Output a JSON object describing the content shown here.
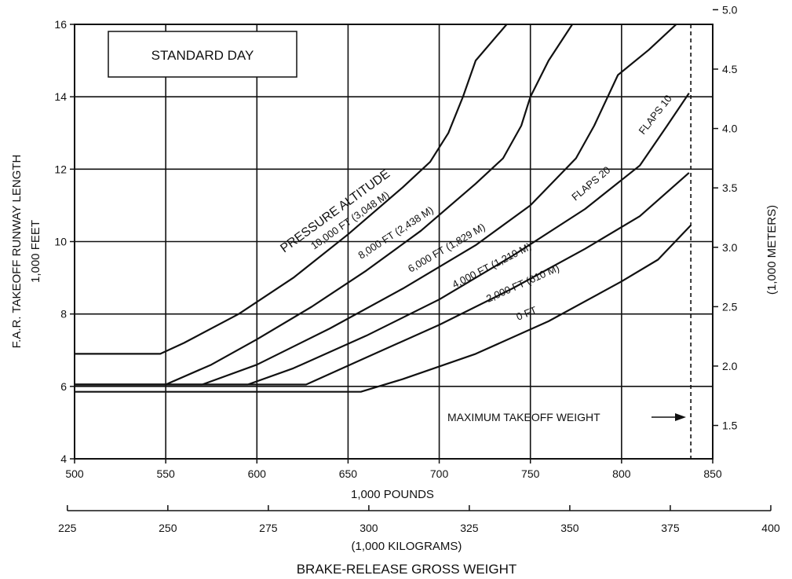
{
  "chart_data": {
    "type": "line",
    "title": "STANDARD DAY",
    "x_axes": {
      "primary": {
        "label": "1,000 POUNDS",
        "range": [
          500,
          850
        ],
        "ticks": [
          "500",
          "550",
          "600",
          "650",
          "700",
          "750",
          "800",
          "850"
        ]
      },
      "secondary": {
        "label": "(1,000 KILOGRAMS)",
        "ticks": [
          "225",
          "250",
          "275",
          "300",
          "325",
          "350",
          "375",
          "400"
        ]
      },
      "overall_label": "BRAKE-RELEASE GROSS WEIGHT"
    },
    "y_axes": {
      "left": {
        "label_line1": "F.A.R. TAKEOFF RUNWAY LENGTH",
        "label_line2": "1,000 FEET",
        "range": [
          4,
          16
        ],
        "ticks": [
          "4",
          "6",
          "8",
          "10",
          "12",
          "14",
          "16"
        ]
      },
      "right": {
        "label": "(1,000 METERS)",
        "ticks": [
          "1.5",
          "2.0",
          "2.5",
          "3.0",
          "3.5",
          "4.0",
          "4.5",
          "5.0"
        ]
      }
    },
    "grid": true,
    "annotations": {
      "pressure_altitude": "PRESSURE ALTITUDE",
      "max_takeoff_weight": "MAXIMUM TAKEOFF WEIGHT",
      "max_takeoff_weight_value": 838,
      "flaps_20": "FLAPS 20",
      "flaps_10": "FLAPS 10"
    },
    "series": [
      {
        "name": "10,000 FT (3,048 M)",
        "points": [
          [
            500,
            6.9
          ],
          [
            547,
            6.9
          ],
          [
            560,
            7.2
          ],
          [
            590,
            8.0
          ],
          [
            620,
            9.0
          ],
          [
            650,
            10.2
          ],
          [
            680,
            11.5
          ],
          [
            695,
            12.2
          ],
          [
            705,
            13.0
          ],
          [
            713,
            14.0
          ],
          [
            720,
            15.0
          ],
          [
            737,
            16.0
          ]
        ]
      },
      {
        "name": "8,000 FT (2,438 M)",
        "points": [
          [
            500,
            6.05
          ],
          [
            550,
            6.05
          ],
          [
            575,
            6.6
          ],
          [
            600,
            7.3
          ],
          [
            630,
            8.2
          ],
          [
            660,
            9.2
          ],
          [
            690,
            10.3
          ],
          [
            720,
            11.6
          ],
          [
            735,
            12.3
          ],
          [
            745,
            13.2
          ],
          [
            750,
            14.0
          ],
          [
            760,
            15.0
          ],
          [
            773,
            16.0
          ]
        ]
      },
      {
        "name": "6,000 FT (1,829 M)",
        "points": [
          [
            500,
            6.05
          ],
          [
            570,
            6.05
          ],
          [
            600,
            6.6
          ],
          [
            640,
            7.6
          ],
          [
            680,
            8.7
          ],
          [
            720,
            9.9
          ],
          [
            750,
            11.0
          ],
          [
            775,
            12.3
          ],
          [
            785,
            13.2
          ],
          [
            798,
            14.6
          ],
          [
            815,
            15.3
          ],
          [
            830,
            16.0
          ]
        ]
      },
      {
        "name": "4,000 FT (1,219 M)",
        "points": [
          [
            500,
            6.05
          ],
          [
            595,
            6.05
          ],
          [
            620,
            6.5
          ],
          [
            660,
            7.4
          ],
          [
            700,
            8.4
          ],
          [
            740,
            9.6
          ],
          [
            780,
            10.9
          ],
          [
            810,
            12.1
          ],
          [
            825,
            13.2
          ],
          [
            837,
            14.1
          ]
        ]
      },
      {
        "name": "2,000 FT (610 M)",
        "points": [
          [
            500,
            6.05
          ],
          [
            627,
            6.05
          ],
          [
            660,
            6.8
          ],
          [
            700,
            7.7
          ],
          [
            740,
            8.7
          ],
          [
            780,
            9.8
          ],
          [
            810,
            10.7
          ],
          [
            837,
            11.9
          ]
        ]
      },
      {
        "name": "0 FT",
        "points": [
          [
            500,
            5.85
          ],
          [
            657,
            5.85
          ],
          [
            680,
            6.2
          ],
          [
            720,
            6.9
          ],
          [
            760,
            7.8
          ],
          [
            800,
            8.9
          ],
          [
            820,
            9.5
          ],
          [
            838,
            10.45
          ]
        ]
      }
    ]
  }
}
